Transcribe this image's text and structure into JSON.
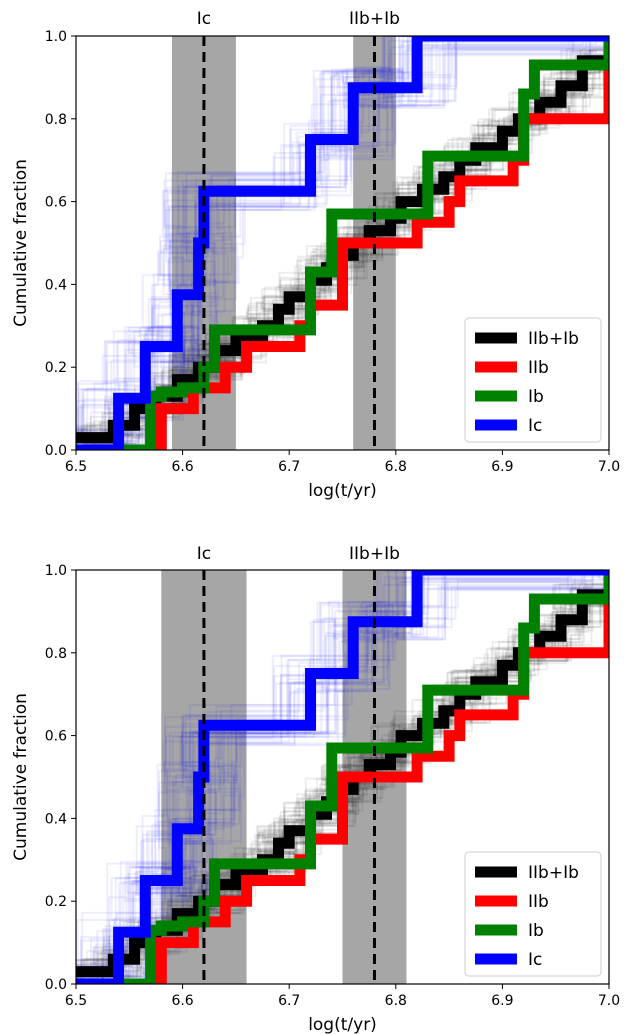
{
  "chart_data": [
    {
      "type": "line",
      "step": true,
      "xlabel": "log(t/yr)",
      "ylabel": "Cumulative fraction",
      "xlim": [
        6.5,
        7.0
      ],
      "ylim": [
        0.0,
        1.0
      ],
      "xticks": [
        "6.5",
        "6.6",
        "6.7",
        "6.8",
        "6.9",
        "7.0"
      ],
      "yticks": [
        "0.0",
        "0.2",
        "0.4",
        "0.6",
        "0.8",
        "1.0"
      ],
      "legend_position": "bottom-right",
      "markers": [
        {
          "label": "Ic",
          "x": 6.62,
          "band": [
            6.59,
            6.65
          ]
        },
        {
          "label": "IIb+Ib",
          "x": 6.78,
          "band": [
            6.76,
            6.8
          ]
        }
      ],
      "series": [
        {
          "name": "IIb+Ib",
          "color": "#000000",
          "x": [
            6.5,
            6.535,
            6.555,
            6.575,
            6.595,
            6.615,
            6.63,
            6.65,
            6.675,
            6.69,
            6.7,
            6.72,
            6.735,
            6.745,
            6.76,
            6.775,
            6.795,
            6.805,
            6.825,
            6.845,
            6.86,
            6.875,
            6.9,
            6.915,
            6.935,
            6.955,
            6.975,
            7.0
          ],
          "y": [
            0.03,
            0.06,
            0.1,
            0.13,
            0.17,
            0.2,
            0.24,
            0.27,
            0.3,
            0.34,
            0.37,
            0.41,
            0.44,
            0.47,
            0.5,
            0.53,
            0.56,
            0.6,
            0.63,
            0.66,
            0.7,
            0.73,
            0.77,
            0.8,
            0.84,
            0.88,
            0.94,
            0.94
          ]
        },
        {
          "name": "IIb",
          "color": "#ff0000",
          "x": [
            6.5,
            6.57,
            6.58,
            6.61,
            6.64,
            6.66,
            6.71,
            6.72,
            6.75,
            6.82,
            6.85,
            6.86,
            6.91,
            6.92,
            7.0
          ],
          "y": [
            0.0,
            0.0,
            0.1,
            0.15,
            0.2,
            0.25,
            0.3,
            0.35,
            0.5,
            0.55,
            0.6,
            0.65,
            0.7,
            0.8,
            1.0
          ]
        },
        {
          "name": "Ib",
          "color": "#008000",
          "x": [
            6.5,
            6.55,
            6.57,
            6.58,
            6.6,
            6.62,
            6.63,
            6.69,
            6.72,
            6.74,
            6.83,
            6.92,
            6.93,
            7.0
          ],
          "y": [
            0.0,
            0.0,
            0.13,
            0.14,
            0.15,
            0.2,
            0.29,
            0.29,
            0.43,
            0.57,
            0.71,
            0.86,
            0.93,
            1.0
          ]
        },
        {
          "name": "Ic",
          "color": "#0000ff",
          "x": [
            6.5,
            6.53,
            6.54,
            6.565,
            6.585,
            6.595,
            6.615,
            6.62,
            6.72,
            6.76,
            6.78,
            6.82,
            7.0
          ],
          "y": [
            0.0,
            0.0,
            0.125,
            0.25,
            0.25,
            0.375,
            0.5,
            0.625,
            0.75,
            0.875,
            0.875,
            1.0,
            1.0
          ]
        }
      ]
    },
    {
      "type": "line",
      "step": true,
      "xlabel": "log(t/yr)",
      "ylabel": "Cumulative fraction",
      "xlim": [
        6.5,
        7.0
      ],
      "ylim": [
        0.0,
        1.0
      ],
      "xticks": [
        "6.5",
        "6.6",
        "6.7",
        "6.8",
        "6.9",
        "7.0"
      ],
      "yticks": [
        "0.0",
        "0.2",
        "0.4",
        "0.6",
        "0.8",
        "1.0"
      ],
      "legend_position": "bottom-right",
      "markers": [
        {
          "label": "Ic",
          "x": 6.62,
          "band": [
            6.58,
            6.66
          ]
        },
        {
          "label": "IIb+Ib",
          "x": 6.78,
          "band": [
            6.75,
            6.81
          ]
        }
      ],
      "series": [
        {
          "name": "IIb+Ib",
          "color": "#000000",
          "x": [
            6.5,
            6.535,
            6.555,
            6.575,
            6.595,
            6.615,
            6.63,
            6.65,
            6.675,
            6.69,
            6.7,
            6.72,
            6.735,
            6.745,
            6.76,
            6.775,
            6.795,
            6.805,
            6.825,
            6.845,
            6.86,
            6.875,
            6.9,
            6.915,
            6.935,
            6.955,
            6.975,
            7.0
          ],
          "y": [
            0.03,
            0.06,
            0.1,
            0.13,
            0.17,
            0.2,
            0.24,
            0.27,
            0.3,
            0.34,
            0.37,
            0.41,
            0.44,
            0.47,
            0.5,
            0.53,
            0.56,
            0.6,
            0.63,
            0.66,
            0.7,
            0.73,
            0.77,
            0.8,
            0.84,
            0.88,
            0.94,
            0.94
          ]
        },
        {
          "name": "IIb",
          "color": "#ff0000",
          "x": [
            6.5,
            6.57,
            6.58,
            6.61,
            6.64,
            6.66,
            6.71,
            6.72,
            6.75,
            6.82,
            6.85,
            6.86,
            6.91,
            6.92,
            7.0
          ],
          "y": [
            0.0,
            0.0,
            0.1,
            0.15,
            0.2,
            0.25,
            0.3,
            0.35,
            0.5,
            0.55,
            0.6,
            0.65,
            0.7,
            0.8,
            1.0
          ]
        },
        {
          "name": "Ib",
          "color": "#008000",
          "x": [
            6.5,
            6.55,
            6.57,
            6.58,
            6.6,
            6.62,
            6.63,
            6.69,
            6.72,
            6.74,
            6.83,
            6.92,
            6.93,
            7.0
          ],
          "y": [
            0.0,
            0.0,
            0.13,
            0.14,
            0.15,
            0.2,
            0.29,
            0.29,
            0.43,
            0.57,
            0.71,
            0.86,
            0.93,
            1.0
          ]
        },
        {
          "name": "Ic",
          "color": "#0000ff",
          "x": [
            6.5,
            6.53,
            6.54,
            6.565,
            6.585,
            6.595,
            6.615,
            6.62,
            6.72,
            6.76,
            6.78,
            6.82,
            7.0
          ],
          "y": [
            0.0,
            0.0,
            0.125,
            0.25,
            0.25,
            0.375,
            0.5,
            0.625,
            0.75,
            0.875,
            0.875,
            1.0,
            1.0
          ]
        }
      ]
    }
  ]
}
